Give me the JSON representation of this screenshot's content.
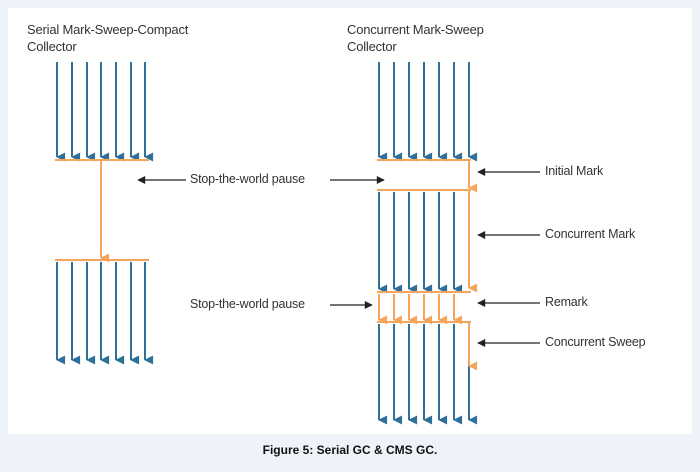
{
  "diagram": {
    "left_title": "Serial Mark-Sweep-Compact\nCollector",
    "right_title": "Concurrent Mark-Sweep\nCollector",
    "left_pause_label": "Stop-the-world pause",
    "right_pause_label": "Stop-the-world pause",
    "phases": {
      "initial_mark": "Initial Mark",
      "concurrent_mark": "Concurrent Mark",
      "remark": "Remark",
      "concurrent_sweep": "Concurrent Sweep"
    },
    "colors": {
      "thread": "#2f6f9a",
      "gc_thread": "#f5a55b",
      "label_arrow": "#222222"
    }
  },
  "caption": "Figure 5: Serial GC & CMS GC."
}
